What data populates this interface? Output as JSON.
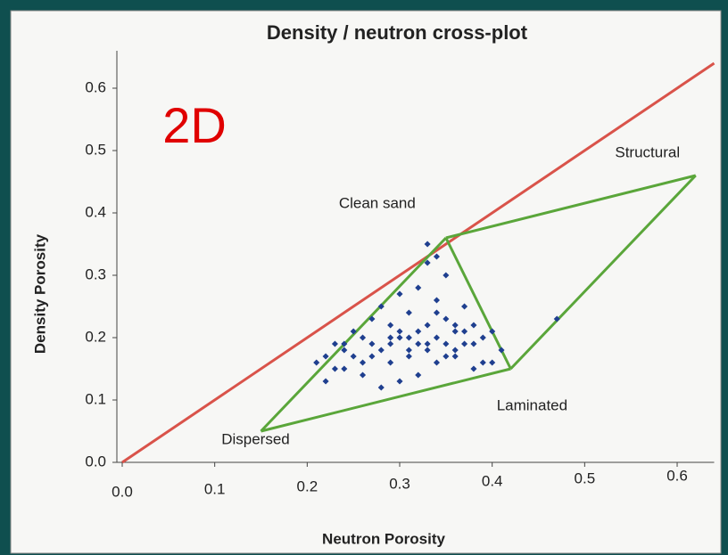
{
  "chart_data": {
    "type": "scatter",
    "title": "Density / neutron cross-plot",
    "annotation": "2D",
    "x_label": "Neutron Porosity",
    "y_label": "Density Porosity",
    "xlim": [
      0,
      0.64
    ],
    "ylim": [
      0,
      0.66
    ],
    "xticks": [
      {
        "value": 0,
        "label": "0.0"
      },
      0.1,
      0.2,
      0.3,
      0.4,
      0.5,
      0.6
    ],
    "yticks": [
      {
        "value": 0,
        "label": "0.0"
      },
      0.1,
      0.2,
      0.3,
      0.4,
      0.5,
      0.6
    ],
    "reference_line": {
      "x": [
        0,
        0.64
      ],
      "y": [
        0,
        0.64
      ],
      "color": "#d9534a"
    },
    "endmembers": {
      "labels": [
        "Clean sand",
        "Structural",
        "Laminated",
        "Dispersed"
      ],
      "x": [
        0.35,
        0.62,
        0.42,
        0.15
      ],
      "y": [
        0.36,
        0.46,
        0.15,
        0.05
      ],
      "edges": [
        [
          3,
          0
        ],
        [
          0,
          2
        ],
        [
          2,
          3
        ],
        [
          0,
          1
        ],
        [
          1,
          2
        ]
      ],
      "color": "#5aa63a"
    },
    "series": [
      {
        "color": "#1f3f8f",
        "x": [
          0.33,
          0.34,
          0.35,
          0.33,
          0.32,
          0.34,
          0.3,
          0.28,
          0.31,
          0.36,
          0.37,
          0.29,
          0.27,
          0.26,
          0.25,
          0.24,
          0.23,
          0.22,
          0.22,
          0.21,
          0.24,
          0.26,
          0.28,
          0.3,
          0.32,
          0.34,
          0.36,
          0.38,
          0.4,
          0.39,
          0.37,
          0.35,
          0.33,
          0.31,
          0.29,
          0.27,
          0.25,
          0.23,
          0.3,
          0.32,
          0.34,
          0.36,
          0.38,
          0.4,
          0.41,
          0.39,
          0.31,
          0.33,
          0.29,
          0.27,
          0.35,
          0.37,
          0.28,
          0.3,
          0.32,
          0.26,
          0.24,
          0.36,
          0.38,
          0.34,
          0.47,
          0.31,
          0.29,
          0.33,
          0.35
        ],
        "values": [
          0.35,
          0.33,
          0.3,
          0.32,
          0.28,
          0.26,
          0.27,
          0.25,
          0.24,
          0.22,
          0.25,
          0.22,
          0.23,
          0.2,
          0.21,
          0.18,
          0.19,
          0.17,
          0.13,
          0.16,
          0.15,
          0.14,
          0.12,
          0.13,
          0.14,
          0.16,
          0.17,
          0.15,
          0.16,
          0.2,
          0.21,
          0.19,
          0.18,
          0.2,
          0.19,
          0.17,
          0.17,
          0.15,
          0.21,
          0.19,
          0.2,
          0.18,
          0.19,
          0.21,
          0.18,
          0.16,
          0.17,
          0.22,
          0.16,
          0.19,
          0.23,
          0.19,
          0.18,
          0.2,
          0.21,
          0.16,
          0.19,
          0.21,
          0.22,
          0.24,
          0.23,
          0.18,
          0.2,
          0.19,
          0.17
        ]
      }
    ]
  }
}
